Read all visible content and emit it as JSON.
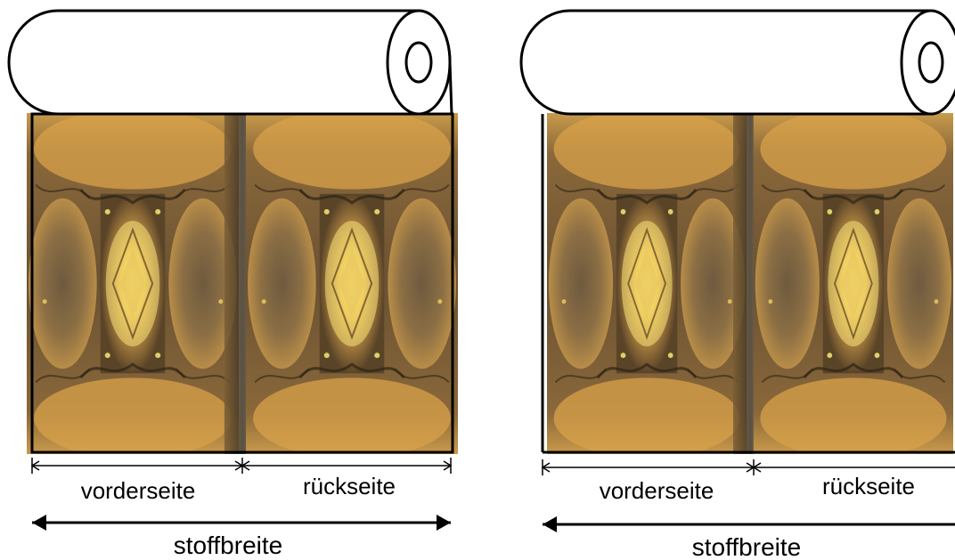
{
  "panels": [
    {
      "id": "left",
      "front_label": "vorderseite",
      "back_label": "rückseite",
      "width_label": "stoffbreite"
    },
    {
      "id": "right",
      "front_label": "vorderseite",
      "back_label": "rückseite",
      "width_label": "stoffbreite"
    }
  ],
  "colors": {
    "outline": "#000000",
    "fabric_dark": "#4a3a22",
    "fabric_mid": "#8a6a38",
    "fabric_gold": "#d9a548",
    "fabric_bright": "#f5e060"
  }
}
